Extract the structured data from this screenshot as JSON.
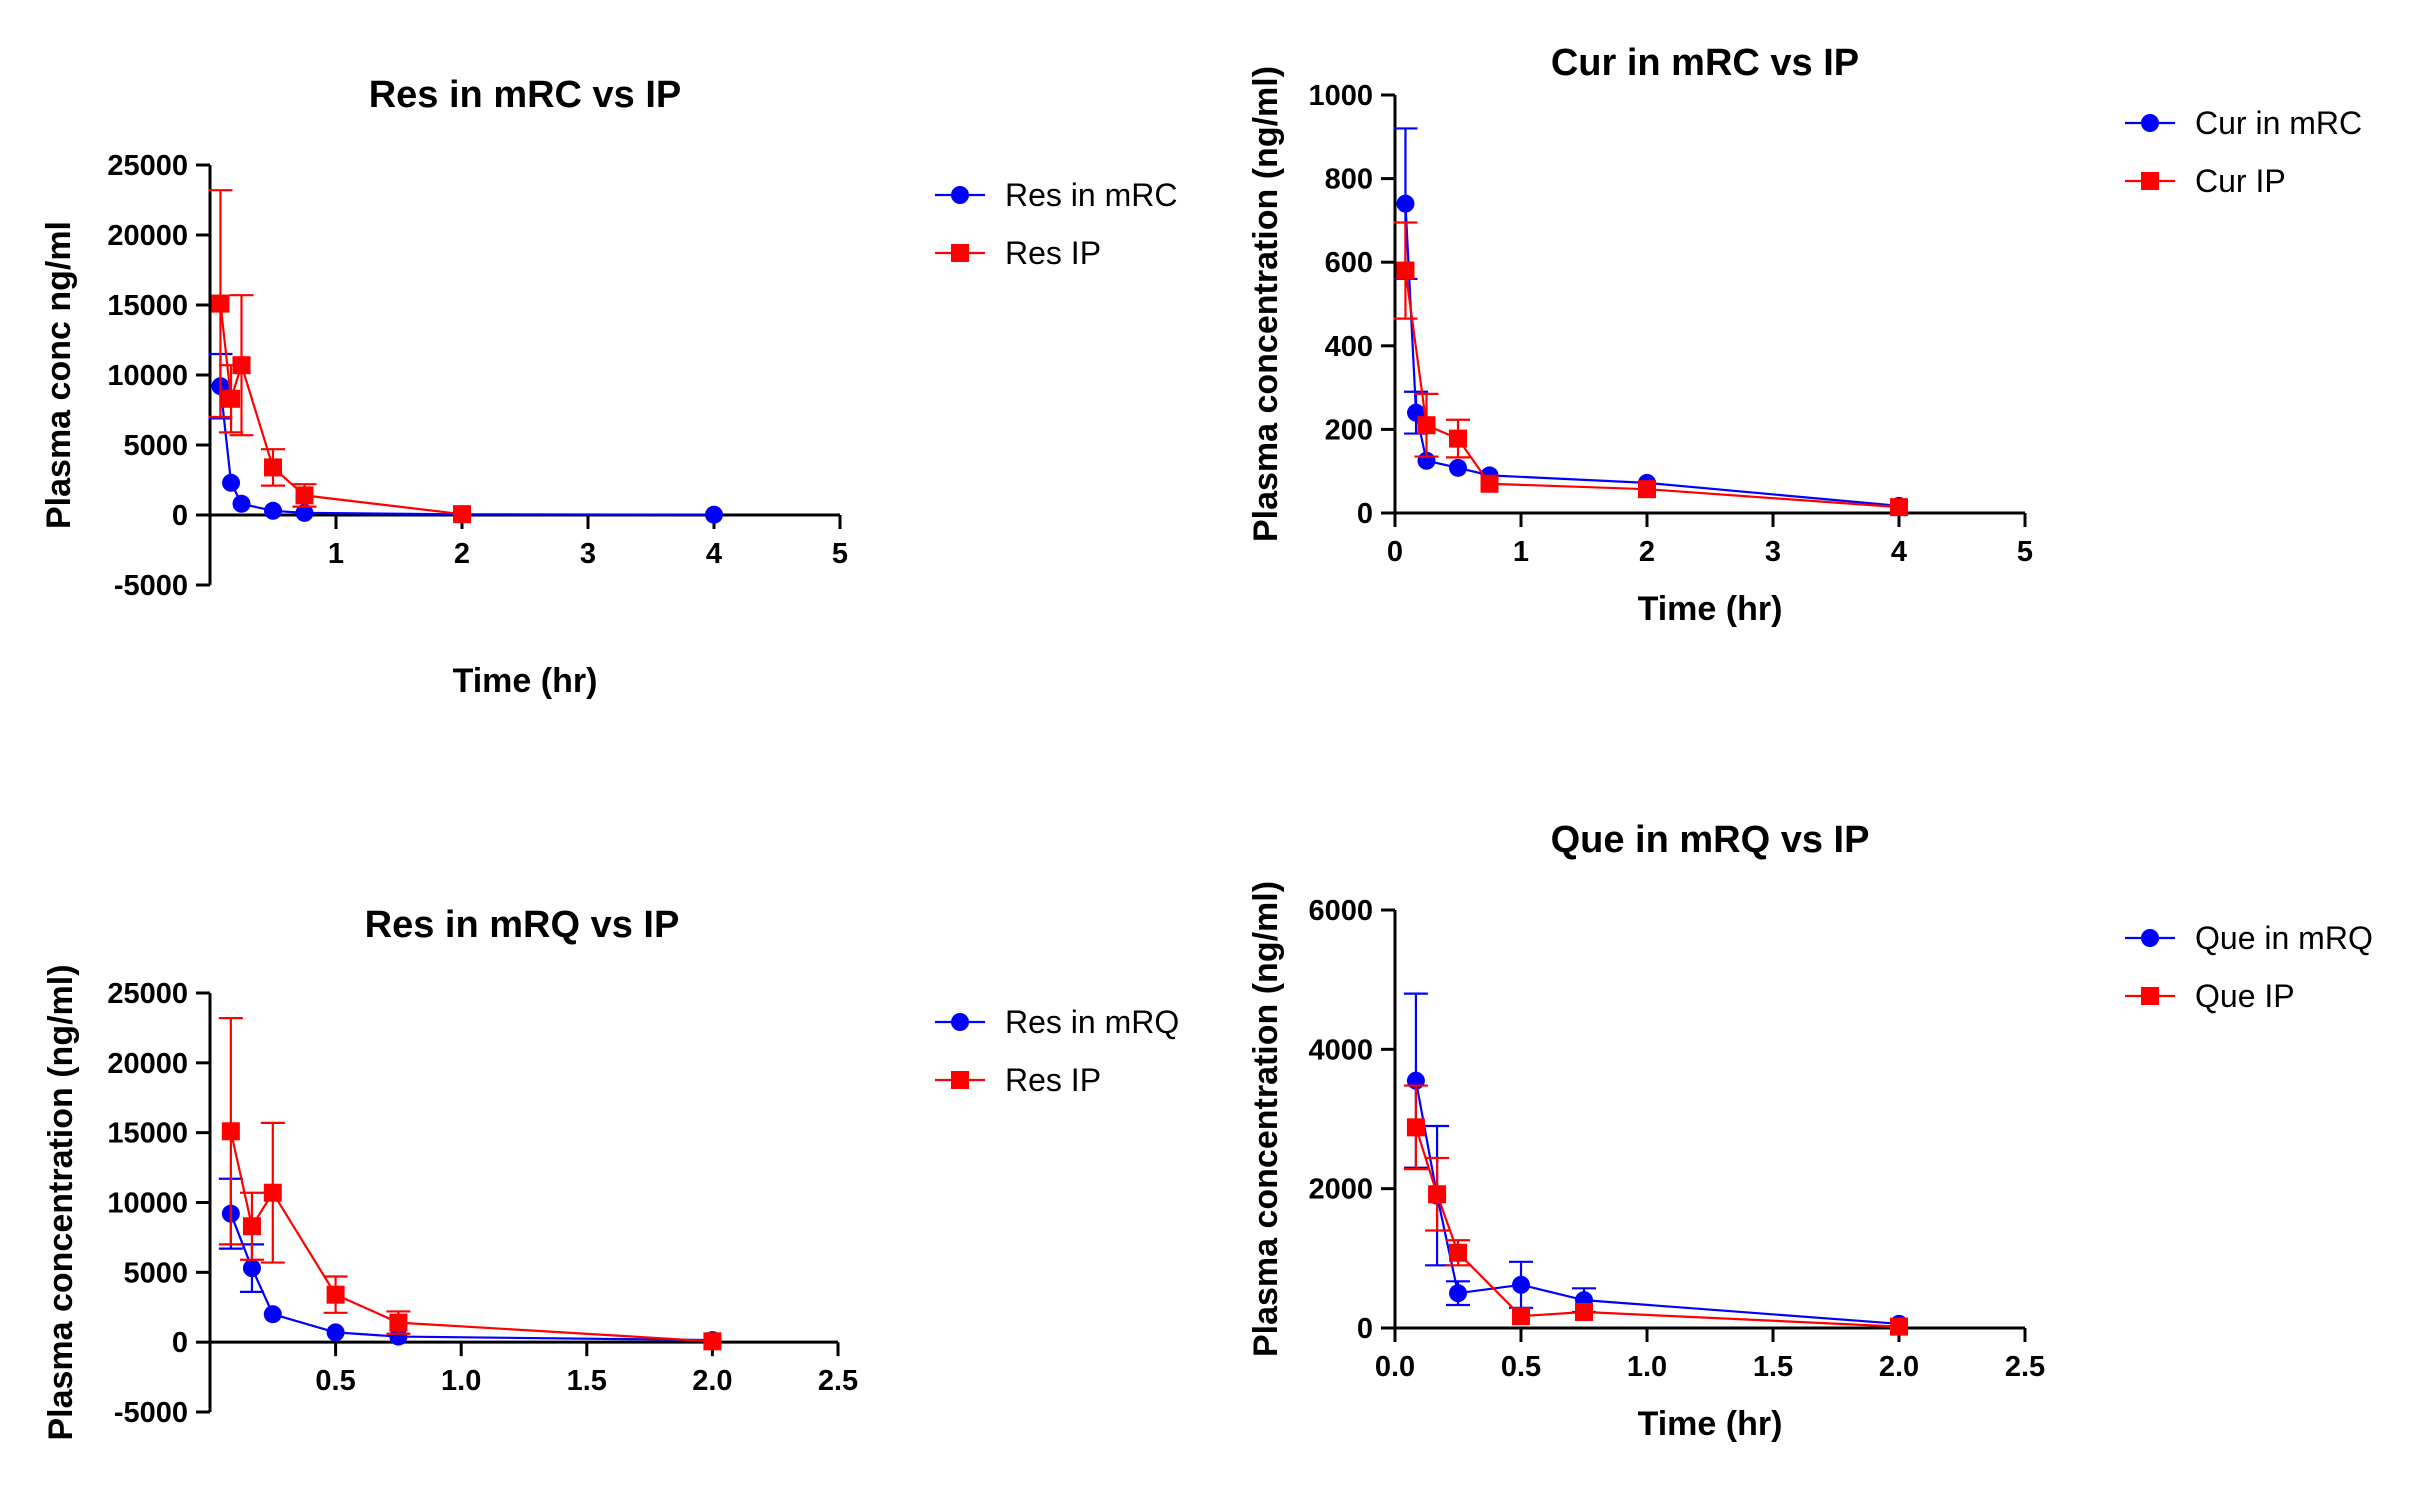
{
  "chart_data": [
    {
      "type": "line",
      "title": "Res in mRC vs IP",
      "xlabel": "Time (hr)",
      "ylabel": "Plasma conc ng/ml",
      "xlim": [
        0,
        5
      ],
      "ylim": [
        -5000,
        25000
      ],
      "xticks": [
        1,
        2,
        3,
        4,
        5
      ],
      "xtick_labels": [
        "1",
        "2",
        "3",
        "4",
        "5"
      ],
      "yticks": [
        -5000,
        0,
        5000,
        10000,
        15000,
        20000,
        25000
      ],
      "ytick_labels": [
        "-5000",
        "0",
        "5000",
        "10000",
        "15000",
        "20000",
        "25000"
      ],
      "grid": false,
      "legend_position": "right",
      "series": [
        {
          "name": "Res in mRC",
          "color": "#0000ff",
          "marker": "circle",
          "x": [
            0.083,
            0.167,
            0.25,
            0.5,
            0.75,
            2,
            4
          ],
          "y": [
            9200,
            2300,
            800,
            300,
            150,
            50,
            20
          ],
          "error": [
            2300,
            0,
            0,
            0,
            0,
            0,
            0
          ]
        },
        {
          "name": "Res IP",
          "color": "#ff0000",
          "marker": "square",
          "x": [
            0.083,
            0.167,
            0.25,
            0.5,
            0.75,
            2
          ],
          "y": [
            15100,
            8300,
            10700,
            3400,
            1400,
            60
          ],
          "error": [
            8100,
            2400,
            5000,
            1300,
            800,
            0
          ]
        }
      ]
    },
    {
      "type": "line",
      "title": "Cur in mRC vs IP",
      "xlabel": "Time (hr)",
      "ylabel": "Plasma concentration (ng/ml)",
      "xlim": [
        0,
        5
      ],
      "ylim": [
        0,
        1000
      ],
      "xticks": [
        0,
        1,
        2,
        3,
        4,
        5
      ],
      "xtick_labels": [
        "0",
        "1",
        "2",
        "3",
        "4",
        "5"
      ],
      "yticks": [
        0,
        200,
        400,
        600,
        800,
        1000
      ],
      "ytick_labels": [
        "0",
        "200",
        "400",
        "600",
        "800",
        "1000"
      ],
      "grid": false,
      "legend_position": "right",
      "series": [
        {
          "name": "Cur in mRC",
          "color": "#0000ff",
          "marker": "circle",
          "x": [
            0.083,
            0.167,
            0.25,
            0.5,
            0.75,
            2,
            4
          ],
          "y": [
            740,
            240,
            125,
            108,
            90,
            72,
            17
          ],
          "error": [
            180,
            50,
            0,
            0,
            0,
            0,
            0
          ]
        },
        {
          "name": "Cur IP",
          "color": "#ff0000",
          "marker": "square",
          "x": [
            0.083,
            0.25,
            0.5,
            0.75,
            2,
            4
          ],
          "y": [
            580,
            210,
            178,
            70,
            57,
            14
          ],
          "error": [
            115,
            75,
            45,
            0,
            0,
            0
          ]
        }
      ]
    },
    {
      "type": "line",
      "title": "Res in mRQ vs IP",
      "xlabel": "Time (hr)",
      "ylabel": "Plasma concentration (ng/ml)",
      "xlim": [
        0,
        2.5
      ],
      "ylim": [
        -5000,
        25000
      ],
      "xticks": [
        0.5,
        1.0,
        1.5,
        2.0,
        2.5
      ],
      "xtick_labels": [
        "0.5",
        "1.0",
        "1.5",
        "2.0",
        "2.5"
      ],
      "yticks": [
        -5000,
        0,
        5000,
        10000,
        15000,
        20000,
        25000
      ],
      "ytick_labels": [
        "-5000",
        "0",
        "5000",
        "10000",
        "15000",
        "20000",
        "25000"
      ],
      "grid": false,
      "legend_position": "right",
      "series": [
        {
          "name": "Res in mRQ",
          "color": "#0000ff",
          "marker": "circle",
          "x": [
            0.083,
            0.167,
            0.25,
            0.5,
            0.75,
            2
          ],
          "y": [
            9200,
            5300,
            2000,
            700,
            400,
            150
          ],
          "error": [
            2500,
            1700,
            0,
            0,
            0,
            0
          ]
        },
        {
          "name": "Res IP",
          "color": "#ff0000",
          "marker": "square",
          "x": [
            0.083,
            0.167,
            0.25,
            0.5,
            0.75,
            2
          ],
          "y": [
            15100,
            8300,
            10700,
            3400,
            1400,
            60
          ],
          "error": [
            8100,
            2400,
            5000,
            1300,
            800,
            0
          ]
        }
      ]
    },
    {
      "type": "line",
      "title": "Que in mRQ vs IP",
      "xlabel": "Time (hr)",
      "ylabel": "Plasma concentration (ng/ml)",
      "xlim": [
        0,
        2.5
      ],
      "ylim": [
        0,
        6000
      ],
      "xticks": [
        0,
        0.5,
        1.0,
        1.5,
        2.0,
        2.5
      ],
      "xtick_labels": [
        "0.0",
        "0.5",
        "1.0",
        "1.5",
        "2.0",
        "2.5"
      ],
      "yticks": [
        0,
        2000,
        4000,
        6000
      ],
      "ytick_labels": [
        "0",
        "2000",
        "4000",
        "6000"
      ],
      "grid": false,
      "legend_position": "right",
      "series": [
        {
          "name": "Que in mRQ",
          "color": "#0000ff",
          "marker": "circle",
          "x": [
            0.083,
            0.167,
            0.25,
            0.5,
            0.75,
            2
          ],
          "y": [
            3550,
            1900,
            500,
            620,
            400,
            60
          ],
          "error": [
            1250,
            1000,
            170,
            330,
            170,
            0
          ]
        },
        {
          "name": "Que IP",
          "color": "#ff0000",
          "marker": "square",
          "x": [
            0.083,
            0.167,
            0.25,
            0.5,
            0.75,
            2
          ],
          "y": [
            2880,
            1920,
            1080,
            170,
            230,
            20
          ],
          "error": [
            600,
            520,
            180,
            0,
            0,
            0
          ]
        }
      ]
    }
  ]
}
